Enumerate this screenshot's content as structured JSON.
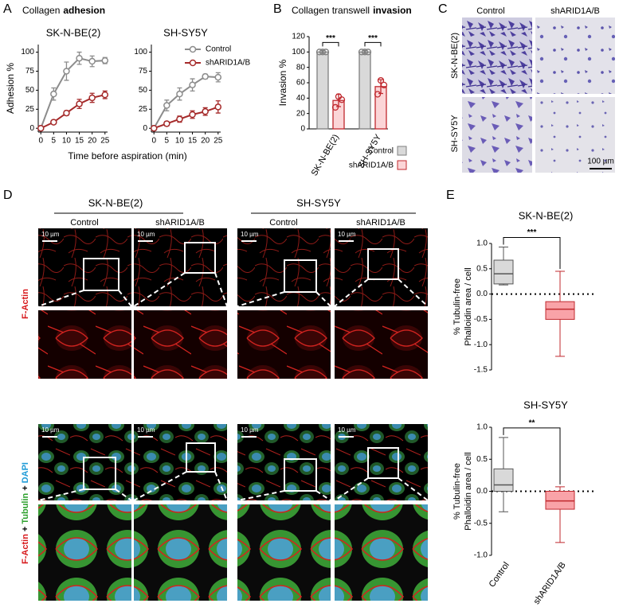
{
  "panel_labels": [
    "A",
    "B",
    "C",
    "D",
    "E"
  ],
  "panel_a": {
    "title": "Collagen",
    "title_bold": "adhesion"
  },
  "panel_b": {
    "title": "Collagen transwell",
    "title_bold": "invasion"
  },
  "panel_c": {
    "columns": [
      "Control",
      "shARID1A/B"
    ],
    "rows": [
      "SK-N-BE(2)",
      "SH-SY5Y"
    ],
    "scale_bar": "100 µm"
  },
  "panel_d": {
    "groups": [
      "SK-N-BE(2)",
      "SH-SY5Y"
    ],
    "columns": [
      "Control",
      "shARID1A/B",
      "Control",
      "shARID1A/B"
    ],
    "scale_bars": [
      "10 µm",
      "10 µm",
      "10 µm",
      "10 µm",
      "10 µm",
      "10 µm",
      "10 µm",
      "10 µm"
    ],
    "row_label_1": "F-Actin",
    "row_label_2": [
      "F-Actin",
      "+",
      "Tubulin",
      "+",
      "DAPI"
    ]
  },
  "chart_data": [
    {
      "type": "line",
      "title": "SK-N-BE(2)",
      "ylabel": "Adhesion %",
      "xlabel": "Time before aspiration (min)",
      "x": [
        0,
        5,
        10,
        15,
        20,
        25
      ],
      "xlim": [
        -1,
        26
      ],
      "xticks": [
        0,
        5,
        10,
        15,
        20,
        25
      ],
      "ylim": [
        -5,
        110
      ],
      "yticks": [
        0,
        25,
        50,
        75,
        100
      ],
      "series": [
        {
          "color": "#8c8c8c",
          "values": [
            0,
            45,
            75,
            92,
            88,
            89
          ],
          "errors": [
            0,
            8,
            12,
            8,
            7,
            4
          ]
        },
        {
          "color": "#a52a2a",
          "values": [
            0,
            8,
            20,
            32,
            40,
            44
          ],
          "errors": [
            0,
            2,
            3,
            6,
            6,
            5
          ]
        }
      ]
    },
    {
      "type": "line",
      "title": "SH-SY5Y",
      "legend": "upper right",
      "x": [
        0,
        5,
        10,
        15,
        20,
        25
      ],
      "xlim": [
        -1,
        26
      ],
      "xticks": [
        0,
        5,
        10,
        15,
        20,
        25
      ],
      "ylim": [
        -5,
        110
      ],
      "yticks": [
        0,
        25,
        50,
        75,
        100
      ],
      "series": [
        {
          "name": "Control",
          "color": "#8c8c8c",
          "values": [
            0,
            30,
            45,
            57,
            68,
            67
          ],
          "errors": [
            0,
            7,
            8,
            8,
            3,
            6
          ]
        },
        {
          "name": "shARID1A/B",
          "color": "#a52a2a",
          "values": [
            0,
            6,
            12,
            18,
            22,
            28
          ],
          "errors": [
            0,
            3,
            4,
            5,
            5,
            8
          ]
        }
      ]
    },
    {
      "type": "bar",
      "ylabel": "Invasion %",
      "categories": [
        "SK-N-BE(2)",
        "SH-SY5Y"
      ],
      "ylim": [
        0,
        120
      ],
      "yticks": [
        0,
        20,
        40,
        60,
        80,
        100,
        120
      ],
      "legend": "lower right",
      "significance": [
        "***",
        "***"
      ],
      "series": [
        {
          "name": "Control",
          "color": "#7f7f7f",
          "fill": "#d9d9d9",
          "values": [
            100,
            100
          ],
          "errors": [
            2,
            2
          ],
          "points": [
            [
              100,
              100,
              100
            ],
            [
              100,
              100,
              100
            ]
          ]
        },
        {
          "name": "shARID1A/B",
          "color": "#c0282e",
          "fill": "#fbd5d7",
          "values": [
            37,
            55
          ],
          "errors": [
            8,
            9
          ],
          "points": [
            [
              28,
              42,
              38
            ],
            [
              45,
              63,
              57
            ]
          ]
        }
      ]
    },
    {
      "type": "box",
      "title": "SK-N-BE(2)",
      "ylabel": [
        "% Tubulin-free",
        "Phalloidin area / cell"
      ],
      "ylim": [
        -1.5,
        1.0
      ],
      "yticks": [
        -1.5,
        {
          "value": -1.0,
          "label": "-1.0"
        },
        -0.5,
        {
          "value": 0,
          "label": "0.0"
        },
        0.5,
        {
          "value": 1.0,
          "label": "1.0"
        }
      ],
      "reference_line": 0,
      "significance": "***",
      "boxes": [
        {
          "color": "#555555",
          "fill": "#d9d9d9",
          "min": 0.18,
          "q1": 0.2,
          "median": 0.4,
          "q3": 0.67,
          "max": 0.93
        },
        {
          "color": "#c0282e",
          "fill": "#f9a3a8",
          "min": -1.23,
          "q1": -0.5,
          "median": -0.3,
          "q3": -0.15,
          "max": 0.45
        }
      ]
    },
    {
      "type": "box",
      "title": "SH-SY5Y",
      "ylabel": [
        "% Tubulin-free",
        "Phalloidin area / cell"
      ],
      "ylim": [
        -1.0,
        1.0
      ],
      "yticks": [
        {
          "value": -1.0,
          "label": "-1.0"
        },
        -0.5,
        {
          "value": 0,
          "label": "0.0"
        },
        0.5,
        {
          "value": 1.0,
          "label": "1.0"
        }
      ],
      "reference_line": 0,
      "significance": "**",
      "categories": [
        "Control",
        "shARID1A/B"
      ],
      "boxes": [
        {
          "color": "#555555",
          "fill": "#d9d9d9",
          "min": -0.32,
          "q1": 0.0,
          "median": 0.1,
          "q3": 0.35,
          "max": 0.84
        },
        {
          "color": "#c0282e",
          "fill": "#f9a3a8",
          "min": -0.8,
          "q1": -0.28,
          "median": -0.15,
          "q3": 0.0,
          "max": 0.07
        }
      ]
    }
  ]
}
